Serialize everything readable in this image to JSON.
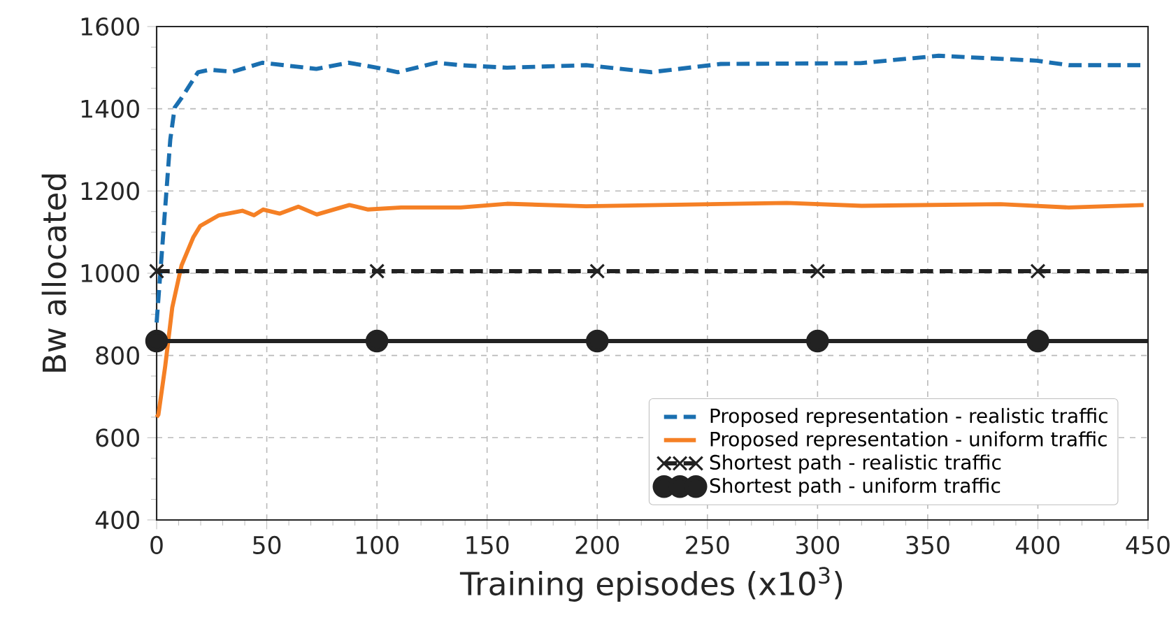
{
  "chart_data": {
    "type": "line",
    "xlabel": "Training episodes (x10$^{3}$)",
    "ylabel": "Bw allocated",
    "xlim": [
      0,
      450
    ],
    "xticks": [
      0,
      50,
      100,
      150,
      200,
      250,
      300,
      350,
      400,
      450
    ],
    "ylim": [
      400,
      1600
    ],
    "yticks": [
      400,
      600,
      800,
      1000,
      1200,
      1400,
      1600
    ],
    "grid": true,
    "legend": "bottom right",
    "series": [
      {
        "name": "Proposed representation - realistic traffic",
        "color": "#1a6fb0",
        "line_style": "dashed",
        "marker": "none",
        "x": [
          0,
          6.2,
          8.2,
          11.4,
          18.8,
          24,
          34.5,
          48,
          72.5,
          87,
          100,
          109.5,
          127,
          138,
          159,
          195,
          224.5,
          256,
          319.5,
          355,
          399.6,
          414,
          448
        ],
        "values": [
          880,
          1325,
          1403,
          1427,
          1489,
          1495,
          1490,
          1512,
          1497,
          1512,
          1500,
          1489,
          1512,
          1506,
          1500,
          1506,
          1489,
          1509,
          1511,
          1529,
          1517,
          1506,
          1506
        ]
      },
      {
        "name": "Proposed representation - uniform traffic",
        "color": "#f58025",
        "line_style": "solid",
        "marker": "none",
        "x": [
          0,
          0.8,
          3.9,
          7.1,
          11.3,
          16.6,
          19.8,
          28.3,
          38.9,
          44.2,
          48.4,
          55.8,
          64.3,
          72.7,
          87.5,
          96,
          111,
          138,
          159,
          195,
          286,
          320,
          383,
          414,
          448
        ],
        "values": [
          650,
          656,
          774,
          917,
          1019,
          1087,
          1115,
          1141,
          1152,
          1141,
          1155,
          1145,
          1162,
          1143,
          1166,
          1155,
          1160,
          1160,
          1169,
          1163,
          1171,
          1164,
          1168,
          1160,
          1166
        ]
      },
      {
        "name": "Shortest path - realistic traffic",
        "color": "#222222",
        "line_style": "dashed",
        "marker": "cross",
        "x": [
          0,
          100,
          200,
          300,
          400,
          450
        ],
        "values": [
          1005,
          1005,
          1005,
          1005,
          1005,
          1005
        ]
      },
      {
        "name": "Shortest path - uniform traffic",
        "color": "#222222",
        "line_style": "solid",
        "marker": "circle",
        "x": [
          0,
          100,
          200,
          300,
          400,
          450
        ],
        "values": [
          835,
          835,
          835,
          835,
          835,
          835
        ]
      }
    ]
  }
}
